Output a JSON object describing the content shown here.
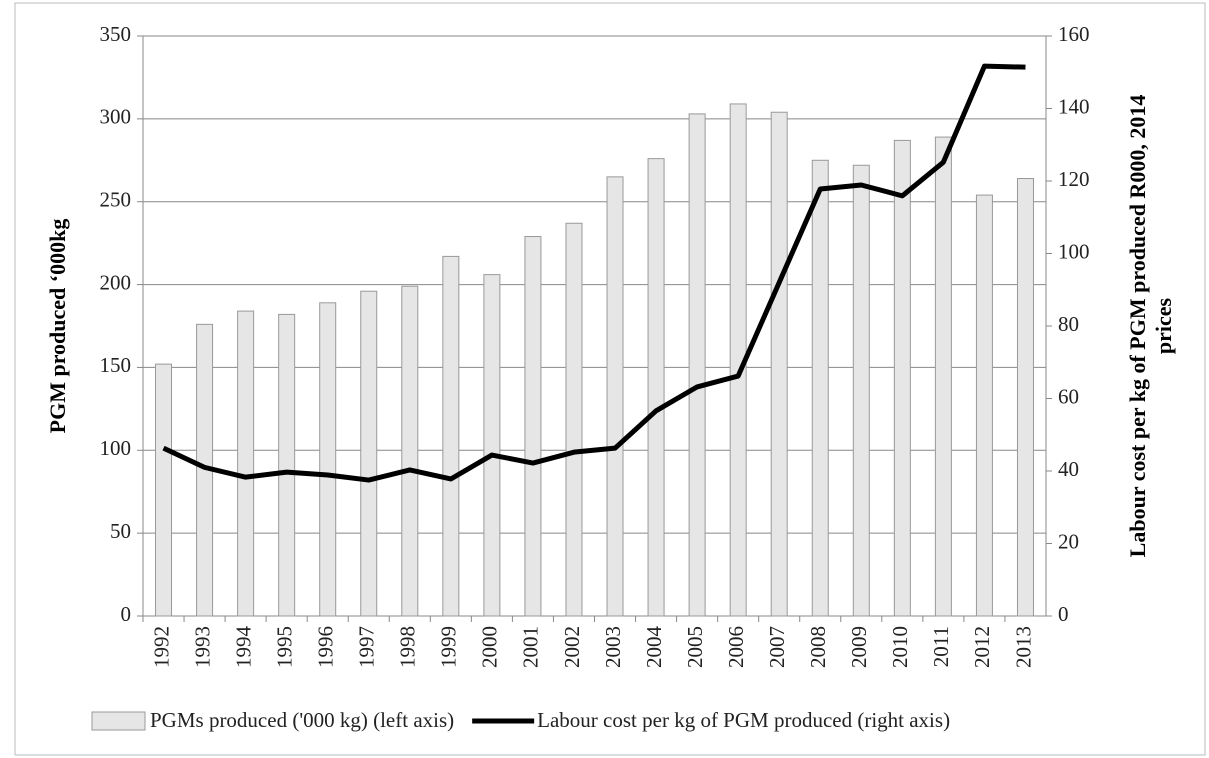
{
  "chart_data": {
    "type": "bar-line",
    "y_label": "PGM produced ‘000kg",
    "y2_label": [
      "Labour cost per kg of PGM produced R000, 2014",
      "prices"
    ],
    "categories": [
      "1992",
      "1993",
      "1994",
      "1995",
      "1996",
      "1997",
      "1998",
      "1999",
      "2000",
      "2001",
      "2002",
      "2003",
      "2004",
      "2005",
      "2006",
      "2007",
      "2008",
      "2009",
      "2010",
      "2011",
      "2012",
      "2013"
    ],
    "series": [
      {
        "name": "PGMs produced ('000 kg) (left axis)",
        "type": "bar",
        "color": "#e6e6e6",
        "values": [
          152,
          176,
          184,
          182,
          189,
          196,
          199,
          217,
          206,
          229,
          237,
          265,
          276,
          303,
          309,
          304,
          275,
          272,
          287,
          289,
          254,
          264
        ]
      },
      {
        "name": "Labour cost per kg of PGM produced (right axis)",
        "type": "line",
        "axis": "y2",
        "color": "#000000",
        "values": [
          46.3,
          41,
          38.3,
          39.7,
          38.9,
          37.5,
          40.3,
          37.8,
          44.4,
          42.2,
          45.2,
          46.3,
          56.6,
          63.2,
          66.2,
          92,
          117.8,
          118.9,
          115.9,
          125.2,
          151.7,
          151.4
        ]
      }
    ],
    "ylim": [
      0,
      350
    ],
    "yticks": [
      0,
      50,
      100,
      150,
      200,
      250,
      300,
      350
    ],
    "y2lim": [
      0,
      160
    ],
    "y2ticks": [
      0,
      20,
      40,
      60,
      80,
      100,
      120,
      140,
      160
    ],
    "grid": true,
    "legend": "bottom"
  }
}
